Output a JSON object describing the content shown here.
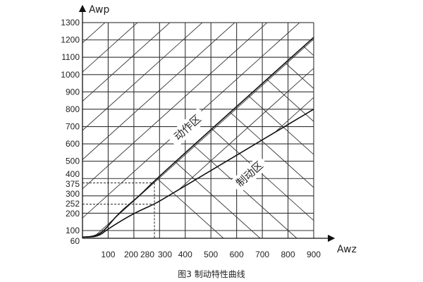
{
  "chart_data": {
    "type": "line",
    "title": "",
    "caption": "图3  制动特性曲线",
    "xlabel": "Awz",
    "ylabel": "Awp",
    "xlim": [
      0,
      900
    ],
    "ylim": [
      60,
      1300
    ],
    "x_ticks": [
      "100",
      "200",
      "280",
      "300",
      "400",
      "500",
      "600",
      "700",
      "800",
      "900"
    ],
    "y_ticks": [
      "60",
      "100",
      "200",
      "252",
      "300",
      "375",
      "400",
      "500",
      "600",
      "700",
      "800",
      "900",
      "1000",
      "1100",
      "1200",
      "1300"
    ],
    "grid": true,
    "series": [
      {
        "points": [
          [
            0,
            62
          ],
          [
            40,
            65
          ],
          [
            80,
            90
          ],
          [
            140,
            200
          ],
          [
            222,
            300
          ],
          [
            288,
            400
          ],
          [
            900,
            1215
          ]
        ]
      },
      {
        "points": [
          [
            0,
            62
          ],
          [
            60,
            64
          ],
          [
            100,
            110
          ],
          [
            200,
            200
          ],
          [
            280,
            252
          ],
          [
            330,
            296
          ],
          [
            900,
            800
          ]
        ]
      }
    ],
    "reference_point_upper": [
      280,
      375
    ],
    "reference_point_lower": [
      280,
      252
    ],
    "zone_labels": {
      "operate": "动作区",
      "restrain": "制动区"
    },
    "colors": {
      "line": "#111111",
      "grid": "#333333"
    }
  }
}
